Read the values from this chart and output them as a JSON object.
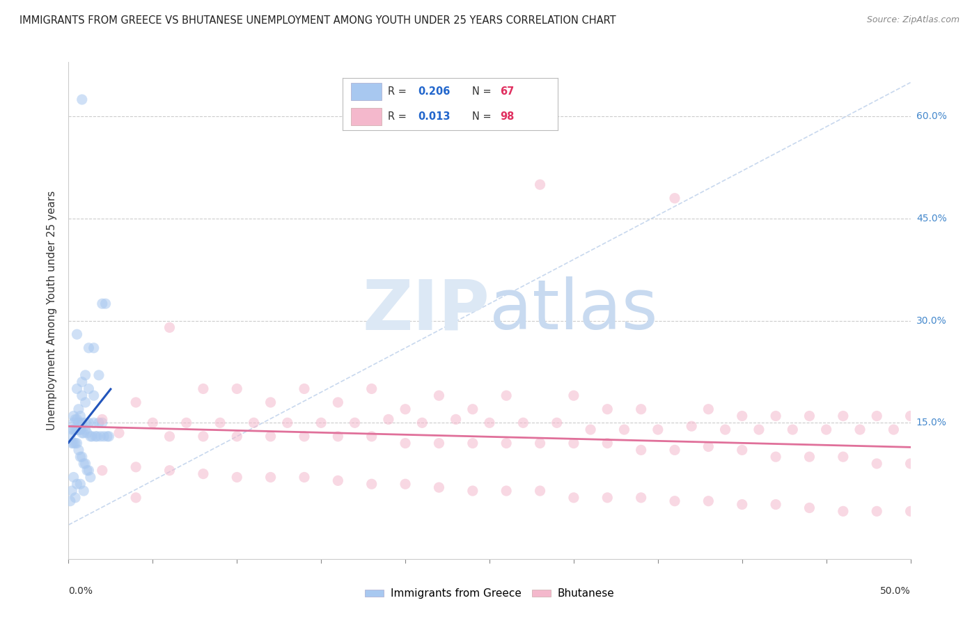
{
  "title": "IMMIGRANTS FROM GREECE VS BHUTANESE UNEMPLOYMENT AMONG YOUTH UNDER 25 YEARS CORRELATION CHART",
  "source": "Source: ZipAtlas.com",
  "ylabel": "Unemployment Among Youth under 25 years",
  "ytick_labels": [
    "15.0%",
    "30.0%",
    "45.0%",
    "60.0%"
  ],
  "ytick_values": [
    0.15,
    0.3,
    0.45,
    0.6
  ],
  "xlim": [
    0.0,
    0.5
  ],
  "ylim": [
    -0.05,
    0.68
  ],
  "legend_blue_R": "0.206",
  "legend_blue_N": "67",
  "legend_pink_R": "0.013",
  "legend_pink_N": "98",
  "blue_color": "#a8c8f0",
  "pink_color": "#f4b8cc",
  "blue_line_color": "#2255bb",
  "pink_line_color": "#e0709a",
  "diagonal_color": "#c8d8ee",
  "background_color": "#ffffff",
  "watermark_zip": "ZIP",
  "watermark_atlas": "atlas",
  "watermark_color": "#dce8f5",
  "title_fontsize": 10.5,
  "source_fontsize": 9,
  "scatter_size": 120,
  "scatter_alpha": 0.55,
  "blue_scatter_x": [
    0.008,
    0.02,
    0.022,
    0.005,
    0.012,
    0.015,
    0.018,
    0.01,
    0.008,
    0.005,
    0.012,
    0.015,
    0.008,
    0.01,
    0.006,
    0.003,
    0.007,
    0.005,
    0.004,
    0.003,
    0.006,
    0.008,
    0.01,
    0.012,
    0.015,
    0.018,
    0.02,
    0.005,
    0.007,
    0.002,
    0.003,
    0.004,
    0.005,
    0.006,
    0.007,
    0.01,
    0.008,
    0.009,
    0.011,
    0.013,
    0.014,
    0.016,
    0.017,
    0.019,
    0.021,
    0.023,
    0.024,
    0.001,
    0.002,
    0.003,
    0.004,
    0.005,
    0.006,
    0.007,
    0.008,
    0.009,
    0.01,
    0.011,
    0.012,
    0.013,
    0.003,
    0.005,
    0.007,
    0.002,
    0.009,
    0.004,
    0.001
  ],
  "blue_scatter_y": [
    0.625,
    0.325,
    0.325,
    0.28,
    0.26,
    0.26,
    0.22,
    0.22,
    0.21,
    0.2,
    0.2,
    0.19,
    0.19,
    0.18,
    0.17,
    0.16,
    0.16,
    0.155,
    0.155,
    0.15,
    0.15,
    0.15,
    0.15,
    0.15,
    0.15,
    0.15,
    0.15,
    0.14,
    0.14,
    0.14,
    0.14,
    0.14,
    0.14,
    0.14,
    0.14,
    0.14,
    0.135,
    0.135,
    0.135,
    0.13,
    0.13,
    0.13,
    0.13,
    0.13,
    0.13,
    0.13,
    0.13,
    0.13,
    0.12,
    0.12,
    0.12,
    0.12,
    0.11,
    0.1,
    0.1,
    0.09,
    0.09,
    0.08,
    0.08,
    0.07,
    0.07,
    0.06,
    0.06,
    0.05,
    0.05,
    0.04,
    0.035
  ],
  "pink_scatter_x": [
    0.36,
    0.06,
    0.1,
    0.14,
    0.08,
    0.18,
    0.22,
    0.26,
    0.3,
    0.04,
    0.12,
    0.16,
    0.2,
    0.24,
    0.32,
    0.34,
    0.38,
    0.4,
    0.42,
    0.44,
    0.46,
    0.5,
    0.48,
    0.02,
    0.05,
    0.07,
    0.09,
    0.11,
    0.13,
    0.15,
    0.17,
    0.19,
    0.21,
    0.23,
    0.25,
    0.27,
    0.29,
    0.31,
    0.33,
    0.35,
    0.37,
    0.39,
    0.41,
    0.43,
    0.45,
    0.47,
    0.49,
    0.03,
    0.06,
    0.08,
    0.1,
    0.12,
    0.14,
    0.16,
    0.18,
    0.2,
    0.22,
    0.24,
    0.26,
    0.28,
    0.3,
    0.32,
    0.34,
    0.36,
    0.38,
    0.4,
    0.42,
    0.44,
    0.46,
    0.48,
    0.5,
    0.02,
    0.04,
    0.06,
    0.08,
    0.1,
    0.12,
    0.14,
    0.16,
    0.18,
    0.2,
    0.22,
    0.24,
    0.26,
    0.28,
    0.3,
    0.32,
    0.34,
    0.36,
    0.38,
    0.4,
    0.42,
    0.44,
    0.46,
    0.48,
    0.5,
    0.04,
    0.28
  ],
  "pink_scatter_y": [
    0.48,
    0.29,
    0.2,
    0.2,
    0.2,
    0.2,
    0.19,
    0.19,
    0.19,
    0.18,
    0.18,
    0.18,
    0.17,
    0.17,
    0.17,
    0.17,
    0.17,
    0.16,
    0.16,
    0.16,
    0.16,
    0.16,
    0.16,
    0.155,
    0.15,
    0.15,
    0.15,
    0.15,
    0.15,
    0.15,
    0.15,
    0.155,
    0.15,
    0.155,
    0.15,
    0.15,
    0.15,
    0.14,
    0.14,
    0.14,
    0.145,
    0.14,
    0.14,
    0.14,
    0.14,
    0.14,
    0.14,
    0.135,
    0.13,
    0.13,
    0.13,
    0.13,
    0.13,
    0.13,
    0.13,
    0.12,
    0.12,
    0.12,
    0.12,
    0.12,
    0.12,
    0.12,
    0.11,
    0.11,
    0.115,
    0.11,
    0.1,
    0.1,
    0.1,
    0.09,
    0.09,
    0.08,
    0.085,
    0.08,
    0.075,
    0.07,
    0.07,
    0.07,
    0.065,
    0.06,
    0.06,
    0.055,
    0.05,
    0.05,
    0.05,
    0.04,
    0.04,
    0.04,
    0.035,
    0.035,
    0.03,
    0.03,
    0.025,
    0.02,
    0.02,
    0.02,
    0.04,
    0.5
  ]
}
